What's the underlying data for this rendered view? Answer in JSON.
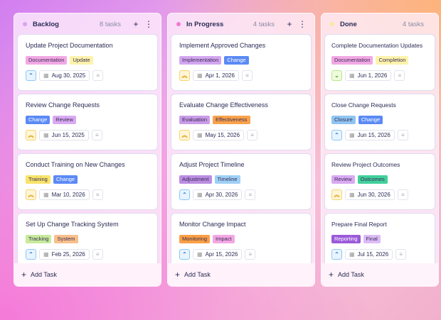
{
  "columns": [
    {
      "title": "Backlog",
      "count": "8 tasks",
      "dot": "#d8a4f0",
      "actions": true,
      "add_label": "Add Task",
      "cards": [
        {
          "title": "Update Project Documentation",
          "tags": [
            {
              "label": "Documentation",
              "color": "#f2a8e4"
            },
            {
              "label": "Update",
              "color": "#fdf3ac"
            }
          ],
          "priority": "low",
          "date": "Aug 30, 2025"
        },
        {
          "title": "Review Change Requests",
          "tags": [
            {
              "label": "Change",
              "color": "#5b8af5",
              "text": "#ffffff"
            },
            {
              "label": "Review",
              "color": "#d9aaf2"
            }
          ],
          "priority": "high",
          "date": "Jun 15, 2025"
        },
        {
          "title": "Conduct Training on New Changes",
          "tags": [
            {
              "label": "Training",
              "color": "#f8e46a"
            },
            {
              "label": "Change",
              "color": "#5b8af5",
              "text": "#ffffff"
            }
          ],
          "priority": "high",
          "date": "Mar 10, 2026"
        },
        {
          "title": "Set Up Change Tracking System",
          "tags": [
            {
              "label": "Tracking",
              "color": "#c7ea9c"
            },
            {
              "label": "System",
              "color": "#f9c08c"
            }
          ],
          "priority": "low",
          "date": "Feb 25, 2026"
        }
      ]
    },
    {
      "title": "In Progress",
      "count": "4 tasks",
      "dot": "#f27ad2",
      "actions": true,
      "add_label": "Add Task",
      "cards": [
        {
          "title": "Implement Approved Changes",
          "tags": [
            {
              "label": "Implementation",
              "color": "#d3a6f0"
            },
            {
              "label": "Change",
              "color": "#5b8af5",
              "text": "#ffffff"
            }
          ],
          "priority": "high",
          "date": "Apr 1, 2026"
        },
        {
          "title": "Evaluate Change Effectiveness",
          "tags": [
            {
              "label": "Evaluation",
              "color": "#c99ce8"
            },
            {
              "label": "Effectiveness",
              "color": "#f9a24c"
            }
          ],
          "priority": "high",
          "date": "May 15, 2026"
        },
        {
          "title": "Adjust Project Timeline",
          "tags": [
            {
              "label": "Adjustment",
              "color": "#bb8ee2"
            },
            {
              "label": "Timeline",
              "color": "#9fd0f6"
            }
          ],
          "priority": "low",
          "date": "Apr 30, 2026"
        },
        {
          "title": "Monitor Change Impact",
          "tags": [
            {
              "label": "Monitoring",
              "color": "#fa9f45"
            },
            {
              "label": "Impact",
              "color": "#f2a8e4"
            }
          ],
          "priority": "low",
          "date": "Apr 15, 2026"
        }
      ]
    },
    {
      "title": "Done",
      "count": "4 tasks",
      "dot": "#fbe99a",
      "actions": false,
      "add_label": "Add Task",
      "cards": [
        {
          "title": "Complete Documentation Updates",
          "tags": [
            {
              "label": "Documentation",
              "color": "#f2a8e4"
            },
            {
              "label": "Completion",
              "color": "#fdf3ac"
            }
          ],
          "priority": "lowest",
          "date": "Jun 1, 2026"
        },
        {
          "title": "Close Change Requests",
          "tags": [
            {
              "label": "Closure",
              "color": "#8fc5f2"
            },
            {
              "label": "Change",
              "color": "#5b8af5",
              "text": "#ffffff"
            }
          ],
          "priority": "low",
          "date": "Jun 15, 2026"
        },
        {
          "title": "Review Project Outcomes",
          "tags": [
            {
              "label": "Review",
              "color": "#d9aaf2"
            },
            {
              "label": "Outcomes",
              "color": "#42d09c"
            }
          ],
          "priority": "high",
          "date": "Jun 30, 2026"
        },
        {
          "title": "Prepare Final Report",
          "tags": [
            {
              "label": "Reporting",
              "color": "#9b5ad9",
              "text": "#ffffff"
            },
            {
              "label": "Final",
              "color": "#dcbcf6"
            }
          ],
          "priority": "low",
          "date": "Jul 15, 2026"
        }
      ]
    }
  ],
  "priority_styles": {
    "low": {
      "icon": "chevron-up",
      "color": "#2f7fd0",
      "bg": "#e8f4ff",
      "border": "#8cc8f5"
    },
    "high": {
      "icon": "double-chevron-up",
      "color": "#e09a10",
      "bg": "#fff6d8",
      "border": "#f6d46a"
    },
    "lowest": {
      "icon": "chevron-down",
      "color": "#4aa020",
      "bg": "#eefbdc",
      "border": "#b8e68c"
    }
  }
}
